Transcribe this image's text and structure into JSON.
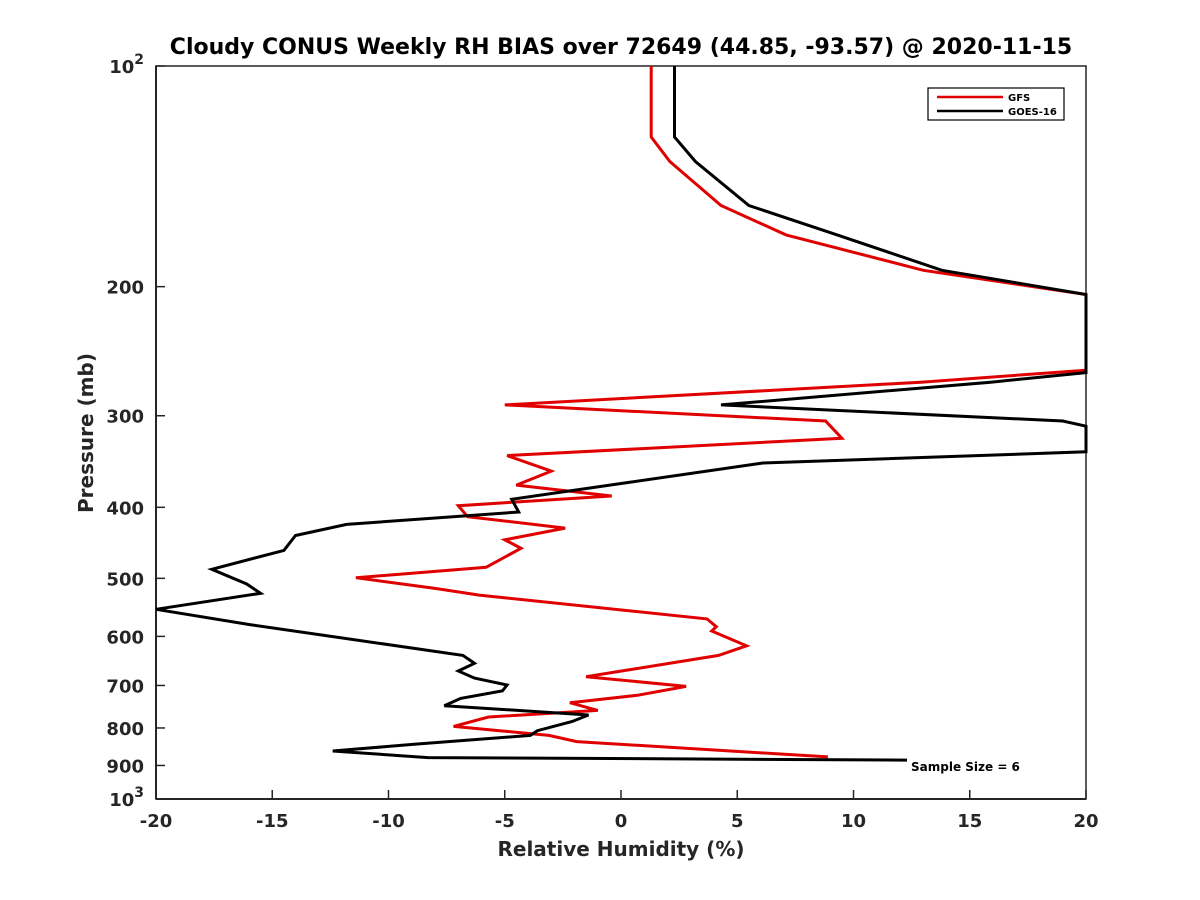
{
  "chart_data": {
    "type": "line",
    "title": "Cloudy CONUS Weekly RH BIAS over 72649 (44.85, -93.57) @ 2020-11-15",
    "xlabel": "Relative Humidity (%)",
    "ylabel": "Pressure (mb)",
    "xlim": [
      -20,
      20
    ],
    "ylim": [
      100,
      1000
    ],
    "y_scale": "log",
    "y_reversed": true,
    "grid": false,
    "legend_position": "top-right",
    "x_ticks": [
      {
        "value": -20,
        "label": "-20"
      },
      {
        "value": -15,
        "label": "-15"
      },
      {
        "value": -10,
        "label": "-10"
      },
      {
        "value": -5,
        "label": "-5"
      },
      {
        "value": 0,
        "label": "0"
      },
      {
        "value": 5,
        "label": "5"
      },
      {
        "value": 10,
        "label": "10"
      },
      {
        "value": 15,
        "label": "15"
      },
      {
        "value": 20,
        "label": "20"
      }
    ],
    "y_ticks": [
      {
        "value": 100,
        "base": "10",
        "exp": "2"
      },
      {
        "value": 200,
        "base": "200",
        "exp": ""
      },
      {
        "value": 300,
        "base": "300",
        "exp": ""
      },
      {
        "value": 400,
        "base": "400",
        "exp": ""
      },
      {
        "value": 500,
        "base": "500",
        "exp": ""
      },
      {
        "value": 600,
        "base": "600",
        "exp": ""
      },
      {
        "value": 700,
        "base": "700",
        "exp": ""
      },
      {
        "value": 800,
        "base": "800",
        "exp": ""
      },
      {
        "value": 900,
        "base": "900",
        "exp": ""
      },
      {
        "value": 1000,
        "base": "10",
        "exp": "3"
      }
    ],
    "annotation": "Sample Size = 6",
    "series": [
      {
        "name": "GFS",
        "color": "#e00000",
        "points": [
          [
            1.3,
            100
          ],
          [
            1.3,
            125
          ],
          [
            2.1,
            135
          ],
          [
            4.3,
            155
          ],
          [
            7.1,
            170
          ],
          [
            13.0,
            190
          ],
          [
            20.0,
            205
          ],
          [
            20.0,
            260
          ],
          [
            12.9,
            270
          ],
          [
            -5.0,
            290
          ],
          [
            8.8,
            305
          ],
          [
            9.5,
            322
          ],
          [
            -4.9,
            340
          ],
          [
            -3.0,
            357
          ],
          [
            -4.5,
            373
          ],
          [
            -0.4,
            386
          ],
          [
            -7.0,
            398
          ],
          [
            -6.6,
            412
          ],
          [
            -2.4,
            427
          ],
          [
            -5.0,
            443
          ],
          [
            -4.3,
            455
          ],
          [
            -5.8,
            483
          ],
          [
            -11.4,
            499
          ],
          [
            -8.0,
            516
          ],
          [
            -6.1,
            527
          ],
          [
            3.7,
            568
          ],
          [
            4.1,
            582
          ],
          [
            3.9,
            590
          ],
          [
            5.4,
            618
          ],
          [
            4.2,
            637
          ],
          [
            -1.5,
            681
          ],
          [
            2.8,
            702
          ],
          [
            0.7,
            722
          ],
          [
            -2.2,
            739
          ],
          [
            -1.0,
            757
          ],
          [
            -5.7,
            773
          ],
          [
            -7.2,
            796
          ],
          [
            -3.1,
            819
          ],
          [
            -1.9,
            835
          ],
          [
            8.9,
            876
          ]
        ]
      },
      {
        "name": "GOES-16",
        "color": "#000000",
        "points": [
          [
            2.3,
            100
          ],
          [
            2.3,
            125
          ],
          [
            3.2,
            135
          ],
          [
            5.5,
            155
          ],
          [
            9.3,
            170
          ],
          [
            13.8,
            190
          ],
          [
            20.0,
            205
          ],
          [
            20.0,
            262
          ],
          [
            15.9,
            270
          ],
          [
            4.3,
            290
          ],
          [
            19.0,
            305
          ],
          [
            20.0,
            310
          ],
          [
            20.0,
            336
          ],
          [
            6.1,
            348
          ],
          [
            0.3,
            370
          ],
          [
            -4.7,
            390
          ],
          [
            -4.4,
            406
          ],
          [
            -11.8,
            422
          ],
          [
            -14.0,
            437
          ],
          [
            -14.5,
            458
          ],
          [
            -17.6,
            486
          ],
          [
            -16.1,
            509
          ],
          [
            -15.5,
            524
          ],
          [
            -20.0,
            551
          ],
          [
            -16.0,
            578
          ],
          [
            -6.8,
            637
          ],
          [
            -6.3,
            653
          ],
          [
            -7.0,
            669
          ],
          [
            -6.3,
            684
          ],
          [
            -4.9,
            699
          ],
          [
            -5.1,
            712
          ],
          [
            -6.9,
            729
          ],
          [
            -7.6,
            746
          ],
          [
            -1.4,
            768
          ],
          [
            -2.1,
            784
          ],
          [
            -3.6,
            807
          ],
          [
            -3.9,
            819
          ],
          [
            -8.9,
            842
          ],
          [
            -12.4,
            860
          ],
          [
            -8.3,
            878
          ],
          [
            12.3,
            885
          ]
        ]
      }
    ]
  }
}
